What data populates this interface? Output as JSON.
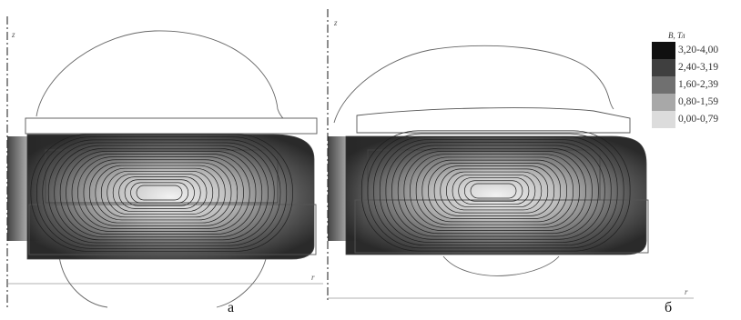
{
  "figure": {
    "panels": [
      {
        "caption": "а",
        "axis_z": "z",
        "axis_r": "r"
      },
      {
        "caption": "б",
        "axis_z": "z",
        "axis_r": "r"
      }
    ],
    "legend": {
      "title": "B, Тл",
      "items": [
        {
          "label": "3,20-4,00",
          "color": "#101010"
        },
        {
          "label": "2,40-3,19",
          "color": "#3f3f3f"
        },
        {
          "label": "1,60-2,39",
          "color": "#707070"
        },
        {
          "label": "0,80-1,59",
          "color": "#a8a8a8"
        },
        {
          "label": "0,00-0,79",
          "color": "#dcdcdc"
        }
      ]
    }
  }
}
